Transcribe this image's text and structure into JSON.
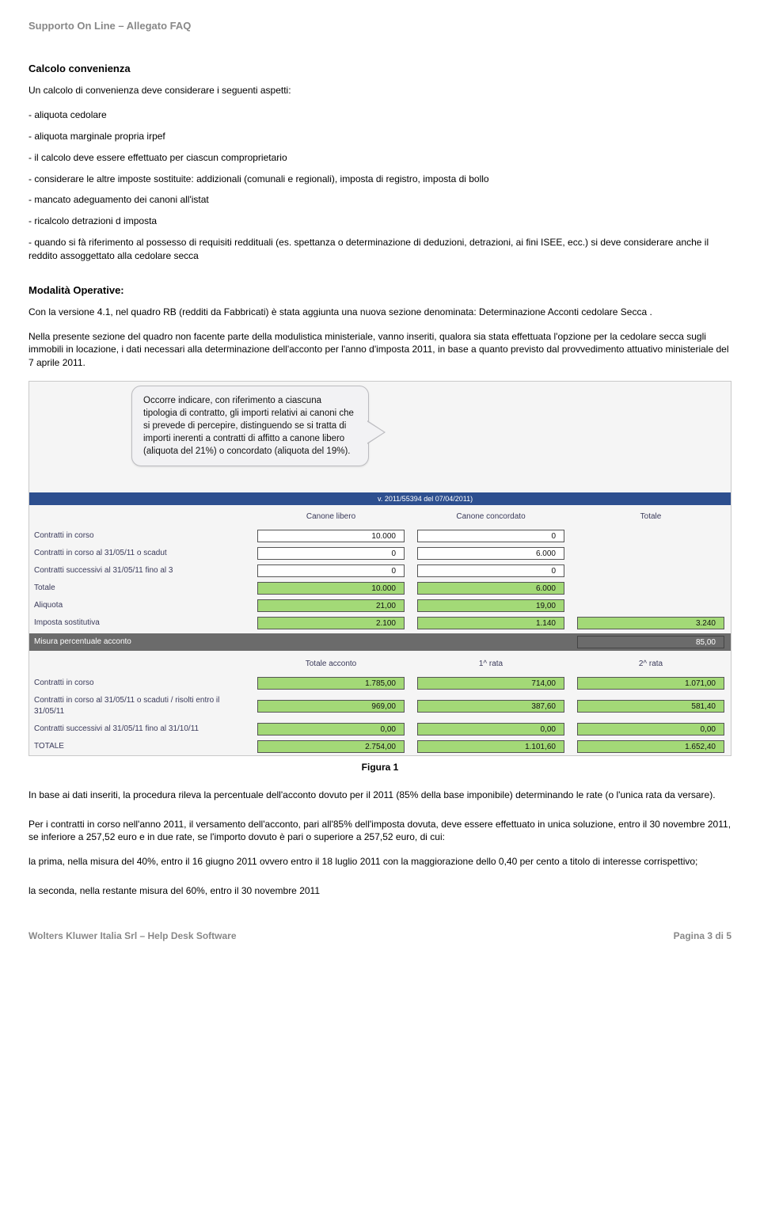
{
  "header": "Supporto On Line – Allegato FAQ",
  "title1": "Calcolo convenienza",
  "p1": "Un calcolo di convenienza deve considerare i seguenti aspetti:",
  "b1": "- aliquota cedolare",
  "b2": "- aliquota marginale propria irpef",
  "b3": "- il calcolo deve essere effettuato per ciascun comproprietario",
  "b4": "- considerare le altre imposte sostituite: addizionali (comunali e regionali), imposta di registro, imposta di bollo",
  "b5": "- mancato adeguamento dei canoni all'istat",
  "b6": "- ricalcolo detrazioni d imposta",
  "b7": "- quando si fà riferimento al possesso di requisiti reddituali (es. spettanza o determinazione di deduzioni, detrazioni, ai fini ISEE, ecc.) si deve considerare anche il reddito assoggettato alla cedolare secca",
  "title2": "Modalità Operative:",
  "p2a": "Con la versione 4.1, nel quadro RB (redditi da Fabbricati) è stata aggiunta una nuova sezione denominata: Determinazione Acconti cedolare Secca .",
  "p2b": "Nella presente sezione del quadro non facente parte della modulistica ministeriale, vanno inseriti, qualora sia stata effettuata l'opzione per la cedolare secca sugli immobili in locazione, i dati necessari alla determinazione dell'acconto per l'anno d'imposta 2011, in base a quanto previsto dal provvedimento attuativo ministeriale del 7 aprile 2011.",
  "callout": "Occorre indicare, con riferimento a ciascuna tipologia di contratto, gli importi relativi ai canoni che si prevede di percepire, distinguendo se si tratta di importi inerenti a contratti di affitto a canone libero (aliquota del 21%) o concordato (aliquota del 19%).",
  "bluebar": "v. 2011/55394 del 07/04/2011)",
  "top_headers": {
    "c1": "Canone libero",
    "c2": "Canone concordato",
    "c3": "Totale"
  },
  "rows_top": [
    {
      "label": "Contratti in corso",
      "v": [
        "10.000",
        "0",
        ""
      ]
    },
    {
      "label": "Contratti in corso al 31/05/11 o scadut",
      "v": [
        "0",
        "6.000",
        ""
      ]
    },
    {
      "label": "Contratti successivi al 31/05/11 fino al 3",
      "v": [
        "0",
        "0",
        ""
      ]
    },
    {
      "label": "Totale",
      "v": [
        "10.000",
        "6.000",
        ""
      ],
      "green": [
        true,
        true,
        false
      ]
    },
    {
      "label": "Aliquota",
      "v": [
        "21,00",
        "19,00",
        ""
      ],
      "green": [
        true,
        true,
        false
      ]
    },
    {
      "label": "Imposta sostitutiva",
      "v": [
        "2.100",
        "1.140",
        "3.240"
      ],
      "green": [
        true,
        true,
        true
      ]
    }
  ],
  "mid_row": {
    "label": "Misura percentuale acconto",
    "val": "85,00"
  },
  "bottom_headers": {
    "c1": "Totale acconto",
    "c2": "1^ rata",
    "c3": "2^ rata"
  },
  "rows_bottom": [
    {
      "label": "Contratti in corso",
      "v": [
        "1.785,00",
        "714,00",
        "1.071,00"
      ],
      "green": [
        true,
        true,
        true
      ]
    },
    {
      "label": "Contratti in corso al 31/05/11 o scaduti / risolti entro il 31/05/11",
      "v": [
        "969,00",
        "387,60",
        "581,40"
      ],
      "green": [
        true,
        true,
        true
      ]
    },
    {
      "label": "Contratti successivi al 31/05/11 fino al 31/10/11",
      "v": [
        "0,00",
        "0,00",
        "0,00"
      ],
      "green": [
        true,
        true,
        true
      ]
    },
    {
      "label": "TOTALE",
      "v": [
        "2.754,00",
        "1.101,60",
        "1.652,40"
      ],
      "green": [
        true,
        true,
        true
      ]
    }
  ],
  "caption": "Figura 1",
  "p3": "In base ai dati inseriti, la procedura rileva la percentuale dell'acconto dovuto per il 2011 (85% della base imponibile) determinando le rate (o l'unica rata da versare).",
  "p4": "Per i contratti in corso nell'anno 2011, il versamento dell'acconto, pari all'85% dell'imposta dovuta, deve essere effettuato in unica soluzione, entro il 30 novembre 2011, se inferiore a 257,52 euro e in due rate, se l'importo dovuto è pari o superiore a 257,52 euro, di cui:",
  "p5": "la prima, nella misura del 40%, entro il 16 giugno 2011 ovvero entro il 18 luglio 2011 con la maggiorazione dello 0,40 per cento a titolo di interesse corrispettivo;",
  "p6": "la seconda, nella restante misura del 60%, entro il 30 novembre 2011",
  "footer_left": "Wolters Kluwer Italia Srl – Help Desk Software",
  "footer_right": "Pagina 3 di 5"
}
